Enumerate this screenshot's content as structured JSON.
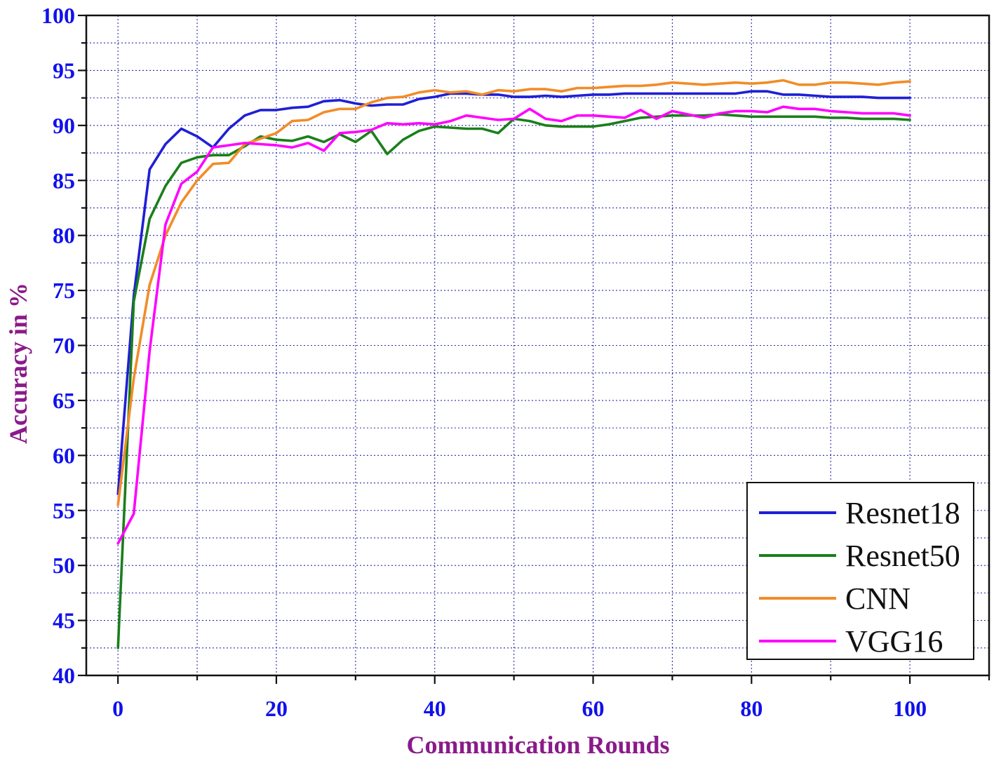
{
  "chart_data": {
    "type": "line",
    "xlabel": "Communication Rounds",
    "ylabel": "Accuracy in %",
    "xlim": [
      -4,
      110
    ],
    "ylim": [
      40,
      100
    ],
    "x_ticks": [
      0,
      20,
      40,
      60,
      80,
      100
    ],
    "y_ticks": [
      40,
      45,
      50,
      55,
      60,
      65,
      70,
      75,
      80,
      85,
      90,
      95,
      100
    ],
    "grid": true,
    "legend_position": "bottom-right",
    "tick_color": "#1010ee",
    "axis_title_color": "#8a1a8a",
    "x": [
      0,
      2,
      4,
      6,
      8,
      10,
      12,
      14,
      16,
      18,
      20,
      22,
      24,
      26,
      28,
      30,
      32,
      34,
      36,
      38,
      40,
      42,
      44,
      46,
      48,
      50,
      52,
      54,
      56,
      58,
      60,
      62,
      64,
      66,
      68,
      70,
      72,
      74,
      76,
      78,
      80,
      82,
      84,
      86,
      88,
      90,
      92,
      94,
      96,
      98,
      100
    ],
    "series": [
      {
        "name": "Resnet18",
        "color": "#1f1fd6",
        "values": [
          56.5,
          74.5,
          86.0,
          88.3,
          89.7,
          89.0,
          88.0,
          89.7,
          90.9,
          91.4,
          91.4,
          91.6,
          91.7,
          92.2,
          92.3,
          92.0,
          91.8,
          91.9,
          91.9,
          92.4,
          92.6,
          92.9,
          92.9,
          92.8,
          92.8,
          92.6,
          92.6,
          92.7,
          92.6,
          92.7,
          92.8,
          92.8,
          92.9,
          92.9,
          92.9,
          92.9,
          92.9,
          92.9,
          92.9,
          92.9,
          93.1,
          93.1,
          92.8,
          92.8,
          92.7,
          92.6,
          92.6,
          92.6,
          92.5,
          92.5,
          92.5
        ]
      },
      {
        "name": "Resnet50",
        "color": "#1a7f1a",
        "values": [
          42.5,
          74.0,
          81.5,
          84.5,
          86.6,
          87.1,
          87.3,
          87.3,
          88.1,
          89.0,
          88.7,
          88.6,
          89.0,
          88.5,
          89.2,
          88.5,
          89.5,
          87.4,
          88.7,
          89.5,
          89.9,
          89.8,
          89.7,
          89.7,
          89.3,
          90.6,
          90.4,
          90.0,
          89.9,
          89.9,
          89.9,
          90.1,
          90.4,
          90.7,
          90.8,
          90.9,
          90.9,
          90.9,
          91.0,
          90.9,
          90.8,
          90.8,
          90.8,
          90.8,
          90.8,
          90.7,
          90.7,
          90.6,
          90.6,
          90.6,
          90.5
        ]
      },
      {
        "name": "CNN",
        "color": "#f28c28",
        "values": [
          55.5,
          67.0,
          75.5,
          80.0,
          83.0,
          85.0,
          86.5,
          86.6,
          88.3,
          88.8,
          89.3,
          90.4,
          90.5,
          91.2,
          91.5,
          91.5,
          92.1,
          92.5,
          92.6,
          93.0,
          93.2,
          93.0,
          93.1,
          92.8,
          93.2,
          93.1,
          93.3,
          93.3,
          93.1,
          93.4,
          93.4,
          93.5,
          93.6,
          93.6,
          93.7,
          93.9,
          93.8,
          93.7,
          93.8,
          93.9,
          93.8,
          93.9,
          94.1,
          93.7,
          93.7,
          93.9,
          93.9,
          93.8,
          93.7,
          93.9,
          94.0
        ]
      },
      {
        "name": "VGG16",
        "color": "#ff00ff",
        "values": [
          52.0,
          54.7,
          69.5,
          81.0,
          84.7,
          85.8,
          88.0,
          88.2,
          88.4,
          88.3,
          88.2,
          88.0,
          88.4,
          87.7,
          89.3,
          89.4,
          89.6,
          90.2,
          90.1,
          90.2,
          90.1,
          90.4,
          90.9,
          90.7,
          90.5,
          90.6,
          91.5,
          90.6,
          90.4,
          90.9,
          90.9,
          90.8,
          90.7,
          91.4,
          90.6,
          91.3,
          91.0,
          90.7,
          91.1,
          91.3,
          91.3,
          91.2,
          91.7,
          91.5,
          91.5,
          91.3,
          91.2,
          91.1,
          91.1,
          91.1,
          90.9
        ]
      }
    ]
  }
}
